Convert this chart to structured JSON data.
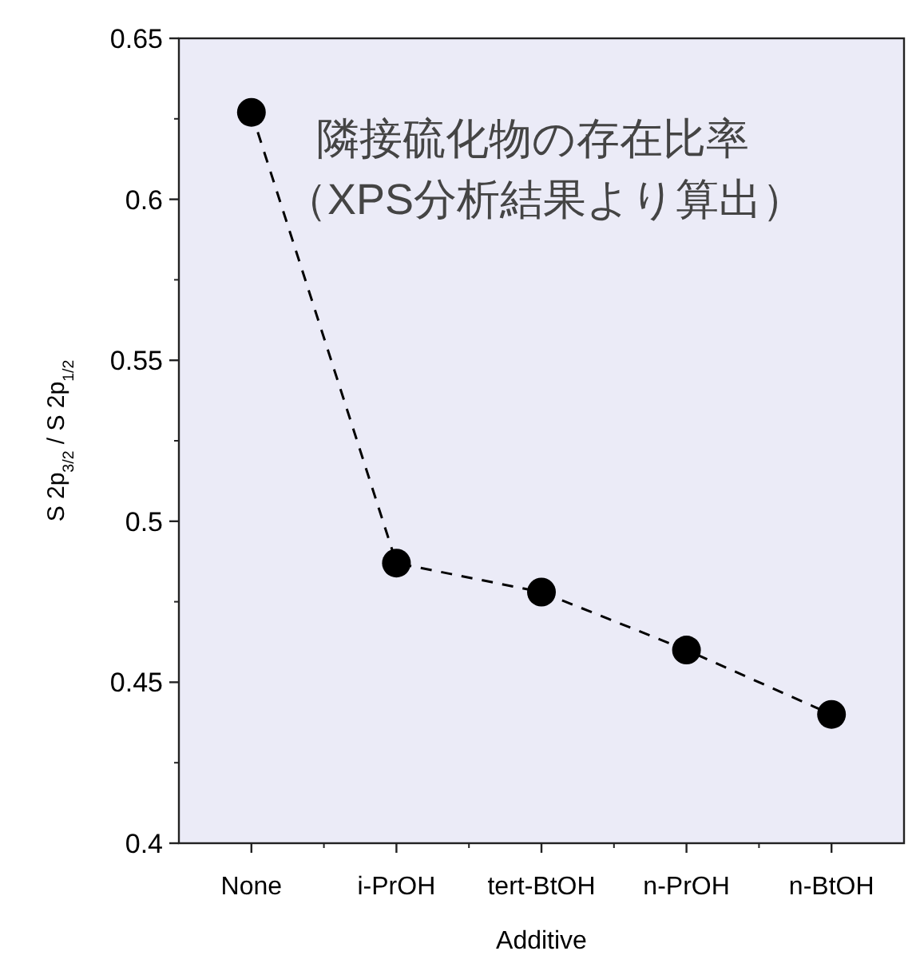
{
  "chart_data": {
    "type": "line",
    "xlabel": "Additive",
    "ylabel": "S 2p$_{3/2}$ / S 2p$_{1/2}$",
    "categories": [
      "None",
      "i-PrOH",
      "tert-BtOH",
      "n-PrOH",
      "n-BtOH"
    ],
    "series": [
      {
        "color": "#000000",
        "values": [
          0.627,
          0.487,
          0.478,
          0.46,
          0.44
        ]
      }
    ],
    "ylim": [
      0.4,
      0.65
    ],
    "yticks": [
      0.4,
      0.45,
      0.5,
      0.55,
      0.6,
      0.65
    ],
    "marker": "circle",
    "line_style": "dashed",
    "grid": false,
    "annotations": [
      "隣接硫化物の存在比率",
      "（XPS分析結果より算出）"
    ]
  }
}
